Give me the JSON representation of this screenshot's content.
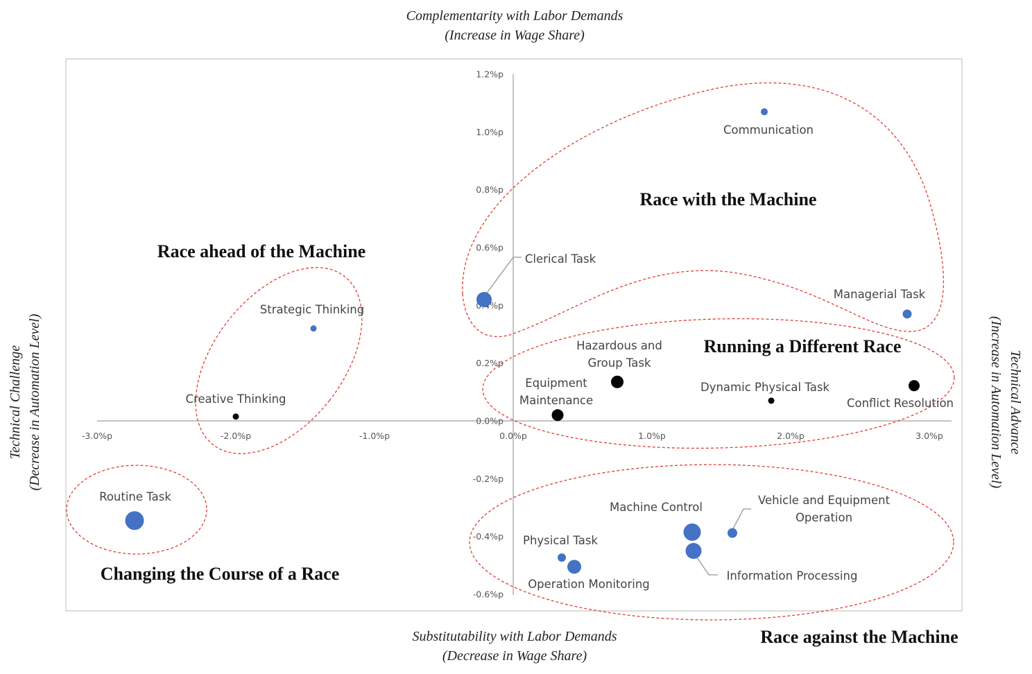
{
  "chart_data": {
    "type": "scatter",
    "axis_titles": {
      "top": [
        "Complementarity with Labor Demands",
        "(Increase in Wage Share)"
      ],
      "bottom": [
        "Substitutability with Labor Demands",
        "(Decrease in Wage Share)"
      ],
      "left": [
        "Technical Challenge",
        "(Decrease in Automation Level)"
      ],
      "right": [
        "Technical Advance",
        "(Increase in Automation Level)"
      ]
    },
    "xlim": [
      -3.0,
      3.0
    ],
    "ylim": [
      -0.6,
      1.2
    ],
    "x_ticks": [
      {
        "value": -3.0,
        "label": "-3.0%p"
      },
      {
        "value": -2.0,
        "label": "-2.0%p"
      },
      {
        "value": -1.0,
        "label": "-1.0%p"
      },
      {
        "value": 0.0,
        "label": "0.0%p"
      },
      {
        "value": 1.0,
        "label": "1.0%p"
      },
      {
        "value": 2.0,
        "label": "2.0%p"
      },
      {
        "value": 3.0,
        "label": "3.0%p"
      }
    ],
    "y_ticks": [
      {
        "value": 1.2,
        "label": "1.2%p"
      },
      {
        "value": 1.0,
        "label": "1.0%p"
      },
      {
        "value": 0.8,
        "label": "0.8%p"
      },
      {
        "value": 0.6,
        "label": "0.6%p"
      },
      {
        "value": 0.4,
        "label": "0.4%p"
      },
      {
        "value": 0.2,
        "label": "0.2%p"
      },
      {
        "value": 0.0,
        "label": "0.0%p"
      },
      {
        "value": -0.2,
        "label": "-0.2%p"
      },
      {
        "value": -0.4,
        "label": "-0.4%p"
      },
      {
        "value": -0.6,
        "label": "-0.6%p"
      }
    ],
    "colors": {
      "blue": "#4472c4",
      "black": "#000000",
      "ellipse": "#e03c31",
      "axis": "#b0b0b0",
      "frame": "#d0d0d0"
    },
    "points": [
      {
        "label": [
          "Communication"
        ],
        "x": 1.81,
        "y": 1.07,
        "size": 5,
        "color": "blue"
      },
      {
        "label": [
          "Clerical Task"
        ],
        "x": -0.21,
        "y": 0.42,
        "size": 11,
        "color": "blue"
      },
      {
        "label": [
          "Managerial Task"
        ],
        "x": 2.84,
        "y": 0.37,
        "size": 6.5,
        "color": "blue"
      },
      {
        "label": [
          "Strategic Thinking"
        ],
        "x": -1.44,
        "y": 0.32,
        "size": 4.5,
        "color": "blue"
      },
      {
        "label": [
          "Creative Thinking"
        ],
        "x": -2.0,
        "y": 0.015,
        "size": 4.5,
        "color": "black"
      },
      {
        "label": [
          "Hazardous and",
          "Group Task"
        ],
        "x": 0.75,
        "y": 0.135,
        "size": 9,
        "color": "black"
      },
      {
        "label": [
          "Equipment",
          "Maintenance"
        ],
        "x": 0.32,
        "y": 0.02,
        "size": 8.5,
        "color": "black"
      },
      {
        "label": [
          "Dynamic Physical Task"
        ],
        "x": 1.86,
        "y": 0.07,
        "size": 4.5,
        "color": "black"
      },
      {
        "label": [
          "Conflict Resolution"
        ],
        "x": 2.89,
        "y": 0.122,
        "size": 8,
        "color": "black"
      },
      {
        "label": [
          "Routine Task"
        ],
        "x": -2.73,
        "y": -0.345,
        "size": 13.5,
        "color": "blue"
      },
      {
        "label": [
          "Machine Control"
        ],
        "x": 1.29,
        "y": -0.385,
        "size": 12.5,
        "color": "blue"
      },
      {
        "label": [
          "Vehicle and Equipment",
          "Operation"
        ],
        "x": 1.58,
        "y": -0.388,
        "size": 7,
        "color": "blue"
      },
      {
        "label": [
          "Information Processing"
        ],
        "x": 1.3,
        "y": -0.45,
        "size": 11.5,
        "color": "blue"
      },
      {
        "label": [
          "Physical Task"
        ],
        "x": 0.35,
        "y": -0.473,
        "size": 6,
        "color": "blue"
      },
      {
        "label": [
          "Operation Monitoring"
        ],
        "x": 0.44,
        "y": -0.505,
        "size": 10,
        "color": "blue"
      }
    ],
    "regions": [
      {
        "name": "Race with the Machine"
      },
      {
        "name": "Race ahead of the Machine"
      },
      {
        "name": "Running a Different Race"
      },
      {
        "name": "Changing the Course of a Race"
      },
      {
        "name": "Race against the Machine"
      }
    ],
    "grid": false,
    "legend": "none"
  }
}
